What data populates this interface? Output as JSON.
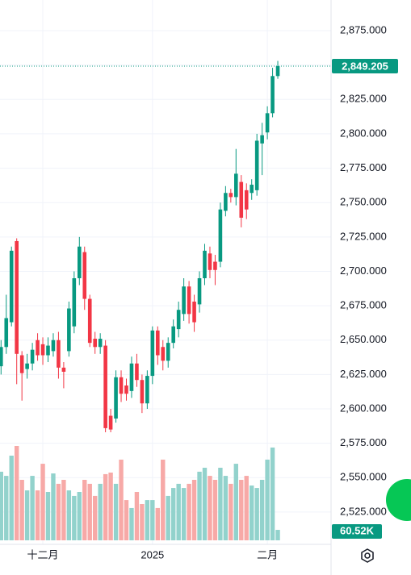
{
  "chart_data": {
    "type": "candlestick",
    "open": [
      2631,
      2645,
      2663,
      2722,
      2639,
      2629,
      2633,
      2650,
      2647,
      2639,
      2642,
      2650,
      2630,
      2642,
      2660,
      2695,
      2714,
      2680,
      2651,
      2645,
      2646,
      2595,
      2593,
      2623,
      2617,
      2613,
      2633,
      2621,
      2604,
      2624,
      2657,
      2645,
      2635,
      2648,
      2658,
      2669,
      2689,
      2678,
      2676,
      2695,
      2713,
      2707,
      2707,
      2744,
      2757,
      2754,
      2765,
      2759,
      2757,
      2759,
      2793,
      2801,
      2815,
      2842
    ],
    "high": [
      2650,
      2683,
      2718,
      2724,
      2642,
      2640,
      2648,
      2655,
      2652,
      2652,
      2655,
      2656,
      2634,
      2678,
      2700,
      2725,
      2718,
      2683,
      2656,
      2655,
      2650,
      2600,
      2628,
      2628,
      2622,
      2638,
      2640,
      2625,
      2628,
      2660,
      2660,
      2650,
      2652,
      2665,
      2678,
      2695,
      2693,
      2683,
      2700,
      2720,
      2718,
      2712,
      2750,
      2762,
      2760,
      2789,
      2770,
      2764,
      2767,
      2800,
      2808,
      2820,
      2848,
      2853
    ],
    "low": [
      2625,
      2640,
      2660,
      2618,
      2606,
      2622,
      2628,
      2635,
      2632,
      2634,
      2638,
      2622,
      2615,
      2638,
      2655,
      2690,
      2672,
      2645,
      2640,
      2640,
      2583,
      2583,
      2590,
      2605,
      2606,
      2608,
      2616,
      2597,
      2600,
      2618,
      2632,
      2628,
      2630,
      2644,
      2652,
      2664,
      2662,
      2656,
      2670,
      2690,
      2695,
      2690,
      2703,
      2740,
      2750,
      2748,
      2732,
      2738,
      2752,
      2755,
      2770,
      2796,
      2812,
      2840
    ],
    "close": [
      2645,
      2666,
      2715,
      2640,
      2626,
      2633,
      2643,
      2639,
      2639,
      2646,
      2650,
      2630,
      2627,
      2673,
      2695,
      2718,
      2680,
      2648,
      2645,
      2651,
      2586,
      2585,
      2623,
      2611,
      2611,
      2633,
      2621,
      2604,
      2624,
      2657,
      2639,
      2635,
      2648,
      2660,
      2672,
      2689,
      2669,
      2663,
      2695,
      2715,
      2701,
      2701,
      2745,
      2757,
      2754,
      2771,
      2739,
      2745,
      2763,
      2795,
      2799,
      2815,
      2842,
      2849.205
    ],
    "volume": [
      397000,
      373000,
      490000,
      546000,
      350000,
      289000,
      373000,
      289000,
      443000,
      280000,
      387000,
      327000,
      350000,
      289000,
      257000,
      280000,
      350000,
      327000,
      257000,
      327000,
      383000,
      392000,
      327000,
      467000,
      233000,
      187000,
      280000,
      210000,
      233000,
      233000,
      187000,
      467000,
      257000,
      303000,
      327000,
      303000,
      327000,
      350000,
      397000,
      420000,
      373000,
      350000,
      420000,
      373000,
      327000,
      443000,
      350000,
      373000,
      317000,
      303000,
      350000,
      467000,
      537000,
      60520
    ],
    "volume_lim": [
      0,
      560000
    ],
    "up_color": "#089981",
    "down_color": "#f23645",
    "volume_up_color": "#92d2cc",
    "volume_down_color": "#f7a9a7",
    "xlim": [
      -0.2,
      63.2
    ],
    "xticks": [
      {
        "value": 8,
        "label": "十二月"
      },
      {
        "value": 29,
        "label": "2025"
      },
      {
        "value": 51,
        "label": "二月"
      }
    ],
    "ylim": [
      2501.5,
      2897.3
    ],
    "yticks": [
      {
        "value": 2525,
        "label": "2,525.000"
      },
      {
        "value": 2550,
        "label": "2,550.000"
      },
      {
        "value": 2575,
        "label": "2,575.000"
      },
      {
        "value": 2600,
        "label": "2,600.000"
      },
      {
        "value": 2625,
        "label": "2,625.000"
      },
      {
        "value": 2650,
        "label": "2,650.000"
      },
      {
        "value": 2675,
        "label": "2,675.000"
      },
      {
        "value": 2700,
        "label": "2,700.000"
      },
      {
        "value": 2725,
        "label": "2,725.000"
      },
      {
        "value": 2750,
        "label": "2,750.000"
      },
      {
        "value": 2775,
        "label": "2,775.000"
      },
      {
        "value": 2800,
        "label": "2,800.000"
      },
      {
        "value": 2825,
        "label": "2,825.000"
      },
      {
        "value": 2850,
        "label": "2,850.000"
      },
      {
        "value": 2875,
        "label": "2,875.000"
      }
    ],
    "price_label": "2,849.205",
    "volume_label": "60.52K",
    "grid": true
  }
}
